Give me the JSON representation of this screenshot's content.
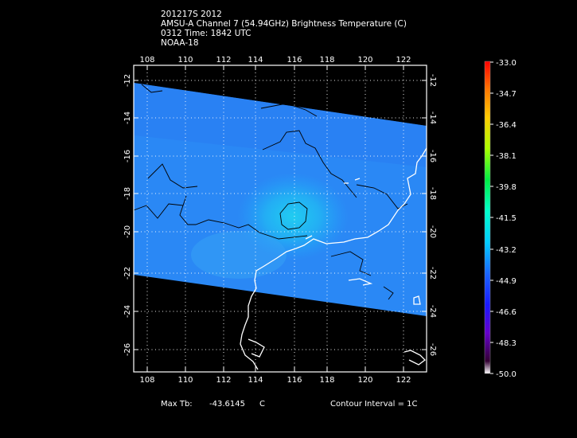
{
  "header": {
    "line1": "201217S 2012",
    "line2": "AMSU-A Channel 7 (54.94GHz) Brightness Temperature (C)",
    "line3": "0312 Time: 1842 UTC",
    "line4": "NOAA-18"
  },
  "map": {
    "lon_ticks": [
      "108",
      "110",
      "112",
      "114",
      "116",
      "118",
      "120",
      "122"
    ],
    "lat_ticks": [
      "-12",
      "-14",
      "-16",
      "-18",
      "-20",
      "-22",
      "-24",
      "-26"
    ],
    "lon_range": [
      107.2,
      123.2
    ],
    "lat_range": [
      -10.6,
      -26.9
    ]
  },
  "colorbar": {
    "labels": [
      "-33.0",
      "-34.7",
      "-36.4",
      "-38.1",
      "-39.8",
      "-41.5",
      "-43.2",
      "-44.9",
      "-46.6",
      "-48.3",
      "-50.0"
    ],
    "colors": [
      "#ff0000",
      "#ff7700",
      "#ffcc00",
      "#aaff00",
      "#00ee44",
      "#00ffaa",
      "#00ccff",
      "#1a66ff",
      "#1a1aff",
      "#6600cc",
      "#330033"
    ]
  },
  "footer": {
    "max_label": "Max Tb:",
    "max_value": "-43.6145",
    "max_unit": "C",
    "contour": "Contour Interval = 1C"
  }
}
